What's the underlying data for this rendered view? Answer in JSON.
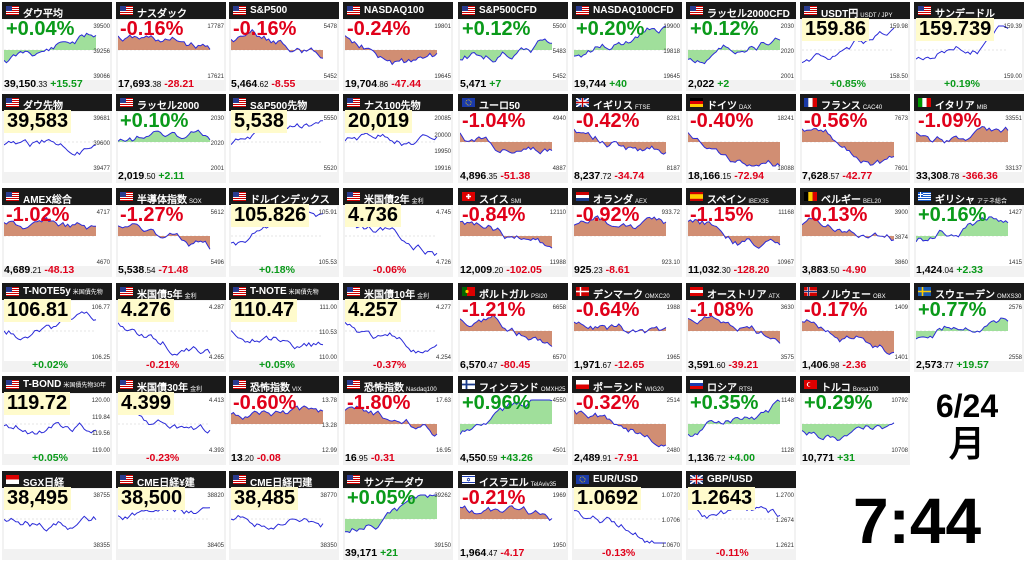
{
  "colors": {
    "up": "#0a9a1a",
    "down": "#e0001a",
    "up_fill": "#8fd98a",
    "down_fill": "#c97a5a",
    "line": "#2a2ad8",
    "header": "#1a1a1a"
  },
  "date": {
    "day": "6/24",
    "month": "月"
  },
  "clock": {
    "time": "7:44"
  },
  "tiles": [
    {
      "name": "ダウ平均",
      "sub": "",
      "flag": "us",
      "col": 0,
      "row": 0,
      "change": "+0.04%",
      "dir": "up",
      "big": false,
      "value": "39,150",
      "value_dec": ".33",
      "diff": "+15.57",
      "ylabels": [
        "39500",
        "39256",
        "39066"
      ],
      "trend": "up"
    },
    {
      "name": "ナスダック",
      "sub": "",
      "flag": "us",
      "col": 1,
      "row": 0,
      "change": "-0.16%",
      "dir": "dn",
      "big": false,
      "value": "17,693",
      "value_dec": ".38",
      "diff": "-28.21",
      "ylabels": [
        "17787",
        "17621"
      ],
      "trend": "dn"
    },
    {
      "name": "S&P500",
      "sub": "",
      "flag": "us",
      "col": 2,
      "row": 0,
      "change": "-0.16%",
      "dir": "dn",
      "big": false,
      "value": "5,464",
      "value_dec": ".62",
      "diff": "-8.55",
      "ylabels": [
        "5478",
        "5452"
      ],
      "trend": "dn"
    },
    {
      "name": "NASDAQ100",
      "sub": "",
      "flag": "us",
      "col": 3,
      "row": 0,
      "change": "-0.24%",
      "dir": "dn",
      "big": false,
      "value": "19,704",
      "value_dec": ".86",
      "diff": "-47.44",
      "ylabels": [
        "19801",
        "19645"
      ],
      "trend": "dn"
    },
    {
      "name": "S&P500CFD",
      "sub": "",
      "flag": "us",
      "col": 4,
      "row": 0,
      "change": "+0.12%",
      "dir": "up",
      "big": false,
      "value": "5,471",
      "value_dec": "",
      "diff": "+7",
      "ylabels": [
        "5500",
        "5483",
        "5452"
      ],
      "trend": "up"
    },
    {
      "name": "NASDAQ100CFD",
      "sub": "",
      "flag": "us",
      "col": 5,
      "row": 0,
      "change": "+0.20%",
      "dir": "up",
      "big": false,
      "value": "19,744",
      "value_dec": "",
      "diff": "+40",
      "ylabels": [
        "19900",
        "19818",
        "19645"
      ],
      "trend": "up"
    },
    {
      "name": "ラッセル2000CFD",
      "sub": "",
      "flag": "us",
      "col": 6,
      "row": 0,
      "change": "+0.12%",
      "dir": "up",
      "big": false,
      "value": "2,022",
      "value_dec": "",
      "diff": "+2",
      "ylabels": [
        "2030",
        "2020",
        "2001"
      ],
      "trend": "up"
    },
    {
      "name": "USDT円",
      "sub": "USDT / JPY",
      "flag": "us",
      "col": 7,
      "row": 0,
      "change": "159.86",
      "dir": "blk",
      "big": true,
      "value": "",
      "value_dec": "",
      "diff": "+0.85%",
      "ylabels": [
        "159.98",
        "158.50"
      ],
      "trend": "up"
    },
    {
      "name": "サンデードル",
      "sub": "",
      "flag": "us",
      "col": 8,
      "row": 0,
      "change": "159.739",
      "dir": "blk",
      "big": true,
      "value": "",
      "value_dec": "",
      "diff": "+0.19%",
      "ylabels": [
        "159.39",
        "159.00"
      ],
      "trend": "up"
    },
    {
      "name": "ダウ先物",
      "sub": "",
      "flag": "us",
      "col": 0,
      "row": 1,
      "change": "39,583",
      "dir": "blk",
      "big": true,
      "value": "",
      "value_dec": "",
      "diff": "",
      "ylabels": [
        "39681",
        "39600",
        "39477"
      ],
      "trend": "flat"
    },
    {
      "name": "ラッセル2000",
      "sub": "",
      "flag": "us",
      "col": 1,
      "row": 1,
      "change": "+0.10%",
      "dir": "up",
      "big": false,
      "value": "2,019",
      "value_dec": ".50",
      "diff": "+2.11",
      "ylabels": [
        "2030",
        "2020",
        "2001"
      ],
      "trend": "flat"
    },
    {
      "name": "S&P500先物",
      "sub": "",
      "flag": "us",
      "col": 2,
      "row": 1,
      "change": "5,538",
      "dir": "blk",
      "big": true,
      "value": "",
      "value_dec": "",
      "diff": "",
      "ylabels": [
        "5550",
        "5520"
      ],
      "trend": "flat"
    },
    {
      "name": "ナス100先物",
      "sub": "",
      "flag": "us",
      "col": 3,
      "row": 1,
      "change": "20,019",
      "dir": "blk",
      "big": true,
      "value": "",
      "value_dec": "",
      "diff": "",
      "ylabels": [
        "20085",
        "20000",
        "19950",
        "19916"
      ],
      "trend": "flat"
    },
    {
      "name": "ユーロ50",
      "sub": "",
      "flag": "eu",
      "col": 4,
      "row": 1,
      "change": "-1.04%",
      "dir": "dn",
      "big": false,
      "value": "4,896",
      "value_dec": ".35",
      "diff": "-51.38",
      "ylabels": [
        "4940",
        "4887"
      ],
      "trend": "dn"
    },
    {
      "name": "イギリス",
      "sub": "FTSE",
      "flag": "gb",
      "col": 5,
      "row": 1,
      "change": "-0.42%",
      "dir": "dn",
      "big": false,
      "value": "8,237",
      "value_dec": ".72",
      "diff": "-34.74",
      "ylabels": [
        "8281",
        "8187"
      ],
      "trend": "dn"
    },
    {
      "name": "ドイツ",
      "sub": "DAX",
      "flag": "de",
      "col": 6,
      "row": 1,
      "change": "-0.40%",
      "dir": "dn",
      "big": false,
      "value": "18,166",
      "value_dec": ".15",
      "diff": "-72.94",
      "ylabels": [
        "18241",
        "18088"
      ],
      "trend": "dn"
    },
    {
      "name": "フランス",
      "sub": "CAC40",
      "flag": "fr",
      "col": 7,
      "row": 1,
      "change": "-0.56%",
      "dir": "dn",
      "big": false,
      "value": "7,628",
      "value_dec": ".57",
      "diff": "-42.77",
      "ylabels": [
        "7673",
        "7601"
      ],
      "trend": "dn"
    },
    {
      "name": "イタリア",
      "sub": "MIB",
      "flag": "it",
      "col": 8,
      "row": 1,
      "change": "-1.09%",
      "dir": "dn",
      "big": false,
      "value": "33,308",
      "value_dec": ".78",
      "diff": "-366.36",
      "ylabels": [
        "33551",
        "33137"
      ],
      "trend": "dn"
    },
    {
      "name": "AMEX総合",
      "sub": "",
      "flag": "us",
      "col": 0,
      "row": 2,
      "change": "-1.02%",
      "dir": "dn",
      "big": false,
      "value": "4,689",
      "value_dec": ".21",
      "diff": "-48.13",
      "ylabels": [
        "4717",
        "4670"
      ],
      "trend": "dn"
    },
    {
      "name": "半導体指数",
      "sub": "SOX",
      "flag": "us",
      "col": 1,
      "row": 2,
      "change": "-1.27%",
      "dir": "dn",
      "big": false,
      "value": "5,538",
      "value_dec": ".54",
      "diff": "-71.48",
      "ylabels": [
        "5612",
        "5496"
      ],
      "trend": "dn"
    },
    {
      "name": "ドルインデックス",
      "sub": "",
      "flag": "us",
      "col": 2,
      "row": 2,
      "change": "105.826",
      "dir": "blk",
      "big": true,
      "value": "",
      "value_dec": "",
      "diff": "+0.18%",
      "ylabels": [
        "105.91",
        "105.53"
      ],
      "trend": "up"
    },
    {
      "name": "米国債2年",
      "sub": "金利",
      "flag": "us",
      "col": 3,
      "row": 2,
      "change": "4.736",
      "dir": "blk",
      "big": true,
      "value": "",
      "value_dec": "",
      "diff": "-0.06%",
      "ylabels": [
        "4.745",
        "4.726"
      ],
      "trend": "dn"
    },
    {
      "name": "スイス",
      "sub": "SMI",
      "flag": "ch",
      "col": 4,
      "row": 2,
      "change": "-0.84%",
      "dir": "dn",
      "big": false,
      "value": "12,009",
      "value_dec": ".20",
      "diff": "-102.05",
      "ylabels": [
        "12110",
        "11988"
      ],
      "trend": "dn"
    },
    {
      "name": "オランダ",
      "sub": "AEX",
      "flag": "nl",
      "col": 5,
      "row": 2,
      "change": "-0.92%",
      "dir": "dn",
      "big": false,
      "value": "925",
      "value_dec": ".23",
      "diff": "-8.61",
      "ylabels": [
        "933.72",
        "923.10"
      ],
      "trend": "dn"
    },
    {
      "name": "スペイン",
      "sub": "IBEX35",
      "flag": "es",
      "col": 6,
      "row": 2,
      "change": "-1.15%",
      "dir": "dn",
      "big": false,
      "value": "11,032",
      "value_dec": ".30",
      "diff": "-128.20",
      "ylabels": [
        "11168",
        "10967"
      ],
      "trend": "dn"
    },
    {
      "name": "ベルギー",
      "sub": "BEL20",
      "flag": "be",
      "col": 7,
      "row": 2,
      "change": "-0.13%",
      "dir": "dn",
      "big": false,
      "value": "3,883",
      "value_dec": ".50",
      "diff": "-4.90",
      "ylabels": [
        "3900",
        "3874",
        "3860"
      ],
      "trend": "dn"
    },
    {
      "name": "ギリシャ",
      "sub": "アテネ総合",
      "flag": "gr",
      "col": 8,
      "row": 2,
      "change": "+0.16%",
      "dir": "up",
      "big": false,
      "value": "1,424",
      "value_dec": ".04",
      "diff": "+2.33",
      "ylabels": [
        "1427",
        "1415"
      ],
      "trend": "up"
    },
    {
      "name": "T-NOTE5y",
      "sub": "米国債先物",
      "flag": "us",
      "col": 0,
      "row": 3,
      "change": "106.81",
      "dir": "blk",
      "big": true,
      "value": "",
      "value_dec": "",
      "diff": "+0.02%",
      "ylabels": [
        "106.77",
        "106.25"
      ],
      "trend": "flat"
    },
    {
      "name": "米国債5年",
      "sub": "金利",
      "flag": "us",
      "col": 1,
      "row": 3,
      "change": "4.276",
      "dir": "blk",
      "big": true,
      "value": "",
      "value_dec": "",
      "diff": "-0.21%",
      "ylabels": [
        "4.287",
        "4.265"
      ],
      "trend": "dn"
    },
    {
      "name": "T-NOTE",
      "sub": "米国債先物",
      "flag": "us",
      "col": 2,
      "row": 3,
      "change": "110.47",
      "dir": "blk",
      "big": true,
      "value": "",
      "value_dec": "",
      "diff": "+0.05%",
      "ylabels": [
        "111.00",
        "110.53",
        "110.00"
      ],
      "trend": "flat"
    },
    {
      "name": "米国債10年",
      "sub": "金利",
      "flag": "us",
      "col": 3,
      "row": 3,
      "change": "4.257",
      "dir": "blk",
      "big": true,
      "value": "",
      "value_dec": "",
      "diff": "-0.37%",
      "ylabels": [
        "4.277",
        "4.254"
      ],
      "trend": "dn"
    },
    {
      "name": "ポルトガル",
      "sub": "PSI20",
      "flag": "pt",
      "col": 4,
      "row": 3,
      "change": "-1.21%",
      "dir": "dn",
      "big": false,
      "value": "6,570",
      "value_dec": ".47",
      "diff": "-80.45",
      "ylabels": [
        "6658",
        "6570"
      ],
      "trend": "dn"
    },
    {
      "name": "デンマーク",
      "sub": "OMXC20",
      "flag": "dk",
      "col": 5,
      "row": 3,
      "change": "-0.64%",
      "dir": "dn",
      "big": false,
      "value": "1,971",
      "value_dec": ".67",
      "diff": "-12.65",
      "ylabels": [
        "1988",
        "1965"
      ],
      "trend": "dn"
    },
    {
      "name": "オーストリア",
      "sub": "ATX",
      "flag": "at",
      "col": 6,
      "row": 3,
      "change": "-1.08%",
      "dir": "dn",
      "big": false,
      "value": "3,591",
      "value_dec": ".60",
      "diff": "-39.21",
      "ylabels": [
        "3630",
        "3575"
      ],
      "trend": "dn"
    },
    {
      "name": "ノルウェー",
      "sub": "OBX",
      "flag": "no",
      "col": 7,
      "row": 3,
      "change": "-0.17%",
      "dir": "dn",
      "big": false,
      "value": "1,406",
      "value_dec": ".98",
      "diff": "-2.36",
      "ylabels": [
        "1409",
        "1401"
      ],
      "trend": "dn"
    },
    {
      "name": "スウェーデン",
      "sub": "OMXS30",
      "flag": "se",
      "col": 8,
      "row": 3,
      "change": "+0.77%",
      "dir": "up",
      "big": false,
      "value": "2,573",
      "value_dec": ".77",
      "diff": "+19.57",
      "ylabels": [
        "2576",
        "2558"
      ],
      "trend": "up"
    },
    {
      "name": "T-BOND",
      "sub": "米国債先物30年",
      "flag": "us",
      "col": 0,
      "row": 4,
      "change": "119.72",
      "dir": "blk",
      "big": true,
      "value": "",
      "value_dec": "",
      "diff": "+0.05%",
      "ylabels": [
        "120.00",
        "119.84",
        "119.56",
        "119.00"
      ],
      "trend": "flat"
    },
    {
      "name": "米国債30年",
      "sub": "金利",
      "flag": "us",
      "col": 1,
      "row": 4,
      "change": "4.399",
      "dir": "blk",
      "big": true,
      "value": "",
      "value_dec": "",
      "diff": "-0.23%",
      "ylabels": [
        "4.413",
        "4.393"
      ],
      "trend": "dn"
    },
    {
      "name": "恐怖指数",
      "sub": "VIX",
      "flag": "us",
      "col": 2,
      "row": 4,
      "change": "-0.60%",
      "dir": "dn",
      "big": false,
      "value": "13",
      "value_dec": ".20",
      "diff": "-0.08",
      "ylabels": [
        "13.78",
        "13.28",
        "12.99"
      ],
      "trend": "dn"
    },
    {
      "name": "恐怖指数",
      "sub": "Nasdaq100",
      "flag": "us",
      "col": 3,
      "row": 4,
      "change": "-1.80%",
      "dir": "dn",
      "big": false,
      "value": "16",
      "value_dec": ".95",
      "diff": "-0.31",
      "ylabels": [
        "17.63",
        "16.95"
      ],
      "trend": "dn"
    },
    {
      "name": "フィンランド",
      "sub": "OMXH25",
      "flag": "fi",
      "col": 4,
      "row": 4,
      "change": "+0.96%",
      "dir": "up",
      "big": false,
      "value": "4,550",
      "value_dec": ".59",
      "diff": "+43.26",
      "ylabels": [
        "4550",
        "4501"
      ],
      "trend": "up"
    },
    {
      "name": "ポーランド",
      "sub": "WIG20",
      "flag": "pl",
      "col": 5,
      "row": 4,
      "change": "-0.32%",
      "dir": "dn",
      "big": false,
      "value": "2,489",
      "value_dec": ".91",
      "diff": "-7.91",
      "ylabels": [
        "2514",
        "2480"
      ],
      "trend": "dn"
    },
    {
      "name": "ロシア",
      "sub": "RTSI",
      "flag": "ru",
      "col": 6,
      "row": 4,
      "change": "+0.35%",
      "dir": "up",
      "big": false,
      "value": "1,136",
      "value_dec": ".72",
      "diff": "+4.00",
      "ylabels": [
        "1148",
        "1128"
      ],
      "trend": "up"
    },
    {
      "name": "トルコ",
      "sub": "Borsa100",
      "flag": "tr",
      "col": 7,
      "row": 4,
      "change": "+0.29%",
      "dir": "up",
      "big": false,
      "value": "10,771",
      "value_dec": "",
      "diff": "+31",
      "ylabels": [
        "10792",
        "10708"
      ],
      "trend": "up"
    },
    {
      "name": "SGX日経",
      "sub": "",
      "flag": "sg",
      "col": 0,
      "row": 5,
      "change": "38,495",
      "dir": "blk",
      "big": true,
      "value": "",
      "value_dec": "",
      "diff": "",
      "ylabels": [
        "38755",
        "38355"
      ],
      "trend": "flat"
    },
    {
      "name": "CME日経¥建",
      "sub": "",
      "flag": "us",
      "col": 1,
      "row": 5,
      "change": "38,500",
      "dir": "blk",
      "big": true,
      "value": "",
      "value_dec": "",
      "diff": "",
      "ylabels": [
        "38820",
        "38405"
      ],
      "trend": "flat"
    },
    {
      "name": "CME日経円建",
      "sub": "",
      "flag": "us",
      "col": 2,
      "row": 5,
      "change": "38,485",
      "dir": "blk",
      "big": true,
      "value": "",
      "value_dec": "",
      "diff": "",
      "ylabels": [
        "38770",
        "38350"
      ],
      "trend": "flat"
    },
    {
      "name": "サンデーダウ",
      "sub": "",
      "flag": "us",
      "col": 3,
      "row": 5,
      "change": "+0.05%",
      "dir": "up",
      "big": false,
      "value": "39,171",
      "value_dec": "",
      "diff": "+21",
      "ylabels": [
        "39262",
        "39150"
      ],
      "trend": "up"
    },
    {
      "name": "イスラエル",
      "sub": "TelAviv35",
      "flag": "il",
      "col": 4,
      "row": 5,
      "change": "-0.21%",
      "dir": "dn",
      "big": false,
      "value": "1,964",
      "value_dec": ".47",
      "diff": "-4.17",
      "ylabels": [
        "1969",
        "1950"
      ],
      "trend": "dn"
    },
    {
      "name": "EUR/USD",
      "sub": "",
      "flag": "eu",
      "col": 5,
      "row": 5,
      "change": "1.0692",
      "dir": "blk",
      "big": true,
      "value": "",
      "value_dec": "",
      "diff": "-0.13%",
      "ylabels": [
        "1.0720",
        "1.0706",
        "1.0670"
      ],
      "trend": "dn"
    },
    {
      "name": "GBP/USD",
      "sub": "",
      "flag": "gb",
      "col": 6,
      "row": 5,
      "change": "1.2643",
      "dir": "blk",
      "big": true,
      "value": "",
      "value_dec": "",
      "diff": "-0.11%",
      "ylabels": [
        "1.2700",
        "1.2674",
        "1.2621"
      ],
      "trend": "dn"
    }
  ]
}
